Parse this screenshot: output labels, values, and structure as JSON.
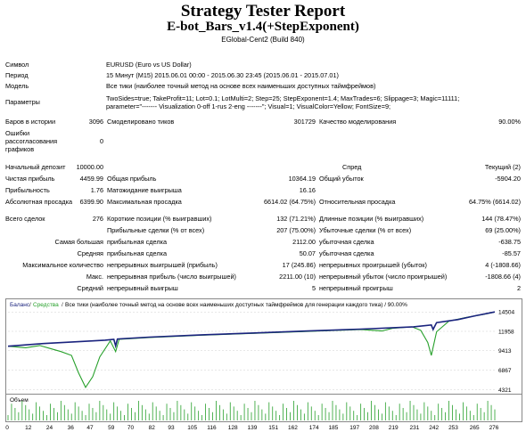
{
  "title": "Strategy Tester Report",
  "ea_name": "E-bot_Bars_v1.4(+StepExponent)",
  "broker": "EGlobal-Cent2 (Build 840)",
  "info": {
    "symbol_label": "Символ",
    "symbol_value": "EURUSD (Euro vs US Dollar)",
    "period_label": "Период",
    "period_value": "15 Минут (M15) 2015.06.01 00:00 - 2015.06.30 23:45 (2015.06.01 - 2015.07.01)",
    "model_label": "Модель",
    "model_value": "Все тики (наиболее точный метод на основе всех наименьших доступных таймфреймов)",
    "params_label": "Параметры",
    "params_line1": "TwoSides=true; TakeProfit=11; Lot=0.1; LotMulti=2; Step=25; StepExponent=1.4; MaxTrades=6; Slippage=3; Magic=11111;",
    "params_line2": "parameter=\"------- Visualization 0-off 1-rus 2-eng -------\"; Visual=1; VisualColor=Yellow; FontSize=9;"
  },
  "history": {
    "bars_label": "Баров в истории",
    "bars_value": "3096",
    "ticks_label": "Смоделировано тиков",
    "ticks_value": "301729",
    "quality_label": "Качество моделирования",
    "quality_value": "90.00%",
    "errors_label1": "Ошибки",
    "errors_label2": "рассогласования",
    "errors_label3": "графиков",
    "errors_value": "0"
  },
  "stats": {
    "deposit_label": "Начальный депозит",
    "deposit_value": "10000.00",
    "spread_label": "Спред",
    "spread_value": "Текущий (2)",
    "net_label": "Чистая прибыль",
    "net_value": "4459.99",
    "gross_profit_label": "Общая прибыль",
    "gross_profit_value": "10364.19",
    "gross_loss_label": "Общий убыток",
    "gross_loss_value": "-5904.20",
    "pf_label": "Прибыльность",
    "pf_value": "1.76",
    "exp_label": "Матожидание выигрыша",
    "exp_value": "16.16",
    "abs_dd_label": "Абсолютная просадка",
    "abs_dd_value": "6399.90",
    "max_dd_label": "Максимальная просадка",
    "max_dd_value": "6614.02 (64.75%)",
    "rel_dd_label": "Относительная просадка",
    "rel_dd_value": "64.75% (6614.02)",
    "trades_label": "Всего сделок",
    "trades_value": "276",
    "short_label": "Короткие позиции (% выигравших)",
    "short_value": "132 (71.21%)",
    "long_label": "Длинные позиции (% выигравших)",
    "long_value": "144 (78.47%)",
    "profit_trades_label": "Прибыльные сделки (% от всех)",
    "profit_trades_value": "207 (75.00%)",
    "loss_trades_label": "Убыточные сделки (% от всех)",
    "loss_trades_value": "69 (25.00%)",
    "largest_label": "Самая большая",
    "largest_profit_label": "прибыльная сделка",
    "largest_profit_value": "2112.00",
    "largest_loss_label": "убыточная сделка",
    "largest_loss_value": "-638.75",
    "average_label": "Средняя",
    "avg_profit_label": "прибыльная сделка",
    "avg_profit_value": "50.07",
    "avg_loss_label": "убыточная сделка",
    "avg_loss_value": "-85.57",
    "max_count_label": "Максимальное количество",
    "max_cons_wins_label": "непрерывных выигрышей (прибыль)",
    "max_cons_wins_value": "17 (245.86)",
    "max_cons_losses_label": "непрерывных проигрышей (убыток)",
    "max_cons_losses_value": "4 (-1808.66)",
    "max_label": "Макс.",
    "max_cons_profit_label": "непрерывная прибыль (число выигрышей)",
    "max_cons_profit_value": "2211.00 (10)",
    "max_cons_loss_label": "непрерывный убыток (число проигрышей)",
    "max_cons_loss_value": "-1808.66 (4)",
    "avg_cons_label": "Средний",
    "avg_cons_win_label": "непрерывный выигрыш",
    "avg_cons_win_value": "5",
    "avg_cons_loss_label": "непрерывный проигрыш",
    "avg_cons_loss_value": "2"
  },
  "chart_data": {
    "type": "line",
    "legend_balance": "Баланс",
    "legend_equity": "Средства",
    "legend_rest": "Все тики (наиболее точный метод на основе всех наименьших доступных таймфреймов для генерации каждого тика) / 90.00%",
    "volume_label": "Объем",
    "y_ticks": [
      "14504",
      "11958",
      "9413",
      "6867",
      "4321"
    ],
    "y_tick_values": [
      14504,
      11958,
      9413,
      6867,
      4321
    ],
    "x_ticks": [
      "0",
      "12",
      "24",
      "36",
      "47",
      "59",
      "70",
      "82",
      "93",
      "105",
      "116",
      "128",
      "139",
      "151",
      "162",
      "174",
      "185",
      "197",
      "208",
      "219",
      "231",
      "242",
      "253",
      "265",
      "276"
    ],
    "x_range": [
      0,
      276
    ],
    "y_range": [
      4000,
      15000
    ],
    "balance_color": "#1a237e",
    "equity_color": "#27a02b",
    "balance": [
      [
        0,
        10000
      ],
      [
        20,
        10350
      ],
      [
        40,
        10600
      ],
      [
        55,
        10800
      ],
      [
        60,
        10900
      ],
      [
        61,
        10050
      ],
      [
        62,
        10950
      ],
      [
        80,
        11200
      ],
      [
        110,
        11500
      ],
      [
        140,
        11750
      ],
      [
        170,
        12000
      ],
      [
        200,
        12250
      ],
      [
        230,
        12550
      ],
      [
        240,
        12800
      ],
      [
        241,
        12200
      ],
      [
        243,
        13100
      ],
      [
        255,
        13500
      ],
      [
        265,
        14000
      ],
      [
        276,
        14504
      ]
    ],
    "equity": [
      [
        0,
        10000
      ],
      [
        10,
        9800
      ],
      [
        18,
        10100
      ],
      [
        24,
        9700
      ],
      [
        30,
        9300
      ],
      [
        36,
        8800
      ],
      [
        40,
        6500
      ],
      [
        44,
        4600
      ],
      [
        48,
        6000
      ],
      [
        52,
        8600
      ],
      [
        58,
        10700
      ],
      [
        61,
        9300
      ],
      [
        63,
        10900
      ],
      [
        80,
        11150
      ],
      [
        110,
        11450
      ],
      [
        140,
        11700
      ],
      [
        170,
        11950
      ],
      [
        200,
        12200
      ],
      [
        212,
        12000
      ],
      [
        218,
        12350
      ],
      [
        229,
        12550
      ],
      [
        234,
        12100
      ],
      [
        238,
        10500
      ],
      [
        240,
        8800
      ],
      [
        243,
        11900
      ],
      [
        250,
        13300
      ],
      [
        260,
        13800
      ],
      [
        270,
        14200
      ],
      [
        276,
        14500
      ]
    ]
  }
}
